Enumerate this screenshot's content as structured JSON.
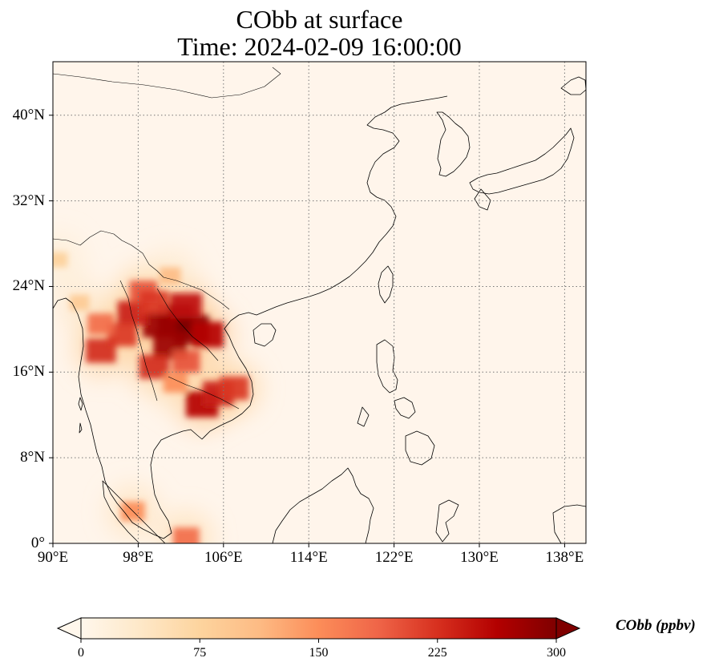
{
  "title": {
    "line1": "CObb at surface",
    "line2": "Time: 2024-02-09 16:00:00"
  },
  "map": {
    "lon_range": [
      90,
      140
    ],
    "lat_range": [
      0,
      45
    ],
    "lon_ticks": [
      {
        "value": 90,
        "label": "90°E"
      },
      {
        "value": 98,
        "label": "98°E"
      },
      {
        "value": 106,
        "label": "106°E"
      },
      {
        "value": 114,
        "label": "114°E"
      },
      {
        "value": 122,
        "label": "122°E"
      },
      {
        "value": 130,
        "label": "130°E"
      },
      {
        "value": 138,
        "label": "138°E"
      }
    ],
    "lat_ticks": [
      {
        "value": 0,
        "label": "0°"
      },
      {
        "value": 8,
        "label": "8°N"
      },
      {
        "value": 16,
        "label": "16°N"
      },
      {
        "value": 24,
        "label": "24°N"
      },
      {
        "value": 32,
        "label": "32°N"
      },
      {
        "value": 40,
        "label": "40°N"
      }
    ],
    "gridlines": "dotted",
    "background_color": "#fff5eb",
    "coastline_color": "#000000"
  },
  "colorbar": {
    "label": "CObb (ppbv)",
    "colormap": "OrRd",
    "range": [
      0,
      300
    ],
    "extend": "both",
    "ticks": [
      {
        "value": 0,
        "label": "0"
      },
      {
        "value": 75,
        "label": "75"
      },
      {
        "value": 150,
        "label": "150"
      },
      {
        "value": 225,
        "label": "225"
      },
      {
        "value": 300,
        "label": "300"
      }
    ],
    "stops": [
      "#fff7ec",
      "#fee8c8",
      "#fdd49e",
      "#fdbb84",
      "#fc8d59",
      "#ef6548",
      "#d7301f",
      "#b30000",
      "#7f0000"
    ]
  },
  "chart_data": {
    "type": "heatmap",
    "variable": "CObb",
    "units": "ppbv",
    "plumes": [
      {
        "lon": 101.5,
        "lat": 21.0,
        "value": 300
      },
      {
        "lon": 103.0,
        "lat": 20.0,
        "value": 300
      },
      {
        "lon": 100.0,
        "lat": 20.5,
        "value": 280
      },
      {
        "lon": 101.0,
        "lat": 18.5,
        "value": 280
      },
      {
        "lon": 104.5,
        "lat": 19.5,
        "value": 260
      },
      {
        "lon": 102.5,
        "lat": 22.2,
        "value": 250
      },
      {
        "lon": 97.5,
        "lat": 21.5,
        "value": 240
      },
      {
        "lon": 94.5,
        "lat": 18.0,
        "value": 230
      },
      {
        "lon": 96.5,
        "lat": 19.5,
        "value": 220
      },
      {
        "lon": 94.5,
        "lat": 20.5,
        "value": 180
      },
      {
        "lon": 98.5,
        "lat": 23.5,
        "value": 200
      },
      {
        "lon": 99.5,
        "lat": 22.5,
        "value": 220
      },
      {
        "lon": 99.5,
        "lat": 16.5,
        "value": 230
      },
      {
        "lon": 104.0,
        "lat": 13.0,
        "value": 260
      },
      {
        "lon": 105.5,
        "lat": 14.0,
        "value": 240
      },
      {
        "lon": 107.0,
        "lat": 14.5,
        "value": 220
      },
      {
        "lon": 101.5,
        "lat": 15.0,
        "value": 150
      },
      {
        "lon": 102.5,
        "lat": 17.0,
        "value": 200
      },
      {
        "lon": 101.0,
        "lat": 25.0,
        "value": 110
      },
      {
        "lon": 92.5,
        "lat": 22.5,
        "value": 90
      },
      {
        "lon": 90.5,
        "lat": 26.5,
        "value": 80
      },
      {
        "lon": 97.5,
        "lat": 3.0,
        "value": 150
      },
      {
        "lon": 102.5,
        "lat": 0.5,
        "value": 180
      }
    ]
  }
}
